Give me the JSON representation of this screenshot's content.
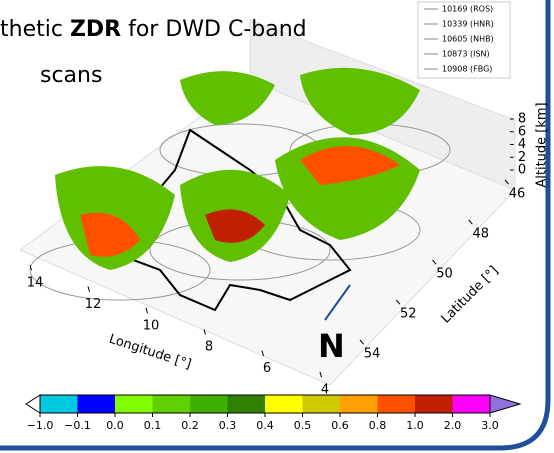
{
  "chart_data": {
    "type": "scan3d",
    "title_parts": [
      "thetic ",
      "ZDR",
      " for DWD C-band",
      "scans"
    ],
    "legend": [
      {
        "name": "10169 (ROS)",
        "color": "#888888"
      },
      {
        "name": "10339 (HNR)",
        "color": "#888888"
      },
      {
        "name": "10605 (NHB)",
        "color": "#888888"
      },
      {
        "name": "10873 (ISN)",
        "color": "#888888"
      },
      {
        "name": "10908 (FBG)",
        "color": "#888888"
      }
    ],
    "xlabel": "Longitude [°]",
    "xlim": [
      14,
      4
    ],
    "xticks": [
      14,
      12,
      10,
      8,
      6,
      4
    ],
    "ylabel": "Latitude [°]",
    "ylim": [
      46,
      54
    ],
    "yticks": [
      46,
      48,
      50,
      52,
      54
    ],
    "zlabel": "Altitude [km]",
    "zlim": [
      0,
      8
    ],
    "zticks": [
      0,
      2,
      4,
      6,
      8
    ],
    "annotation": "N",
    "colorbar": {
      "bounds": [
        {
          "value": -1,
          "label": "−1.0"
        },
        {
          "value": -0.1,
          "label": "−0.1"
        },
        {
          "value": 0,
          "label": "0.0"
        },
        0.1,
        0.2,
        0.3,
        0.4,
        0.5,
        0.6,
        0.8,
        {
          "value": 1,
          "label": "1.0"
        },
        {
          "value": 2,
          "label": "2.0"
        },
        {
          "value": 3,
          "label": "3.0"
        }
      ],
      "colors": [
        "#00c8e0",
        "#0000ff",
        "#80ff00",
        "#60d000",
        "#40b000",
        "#308000",
        "#ffff00",
        "#d0c800",
        "#ffa000",
        "#ff5000",
        "#c02000",
        "#ff00ff"
      ],
      "under": "#ffffff",
      "over": "#9370db"
    }
  }
}
